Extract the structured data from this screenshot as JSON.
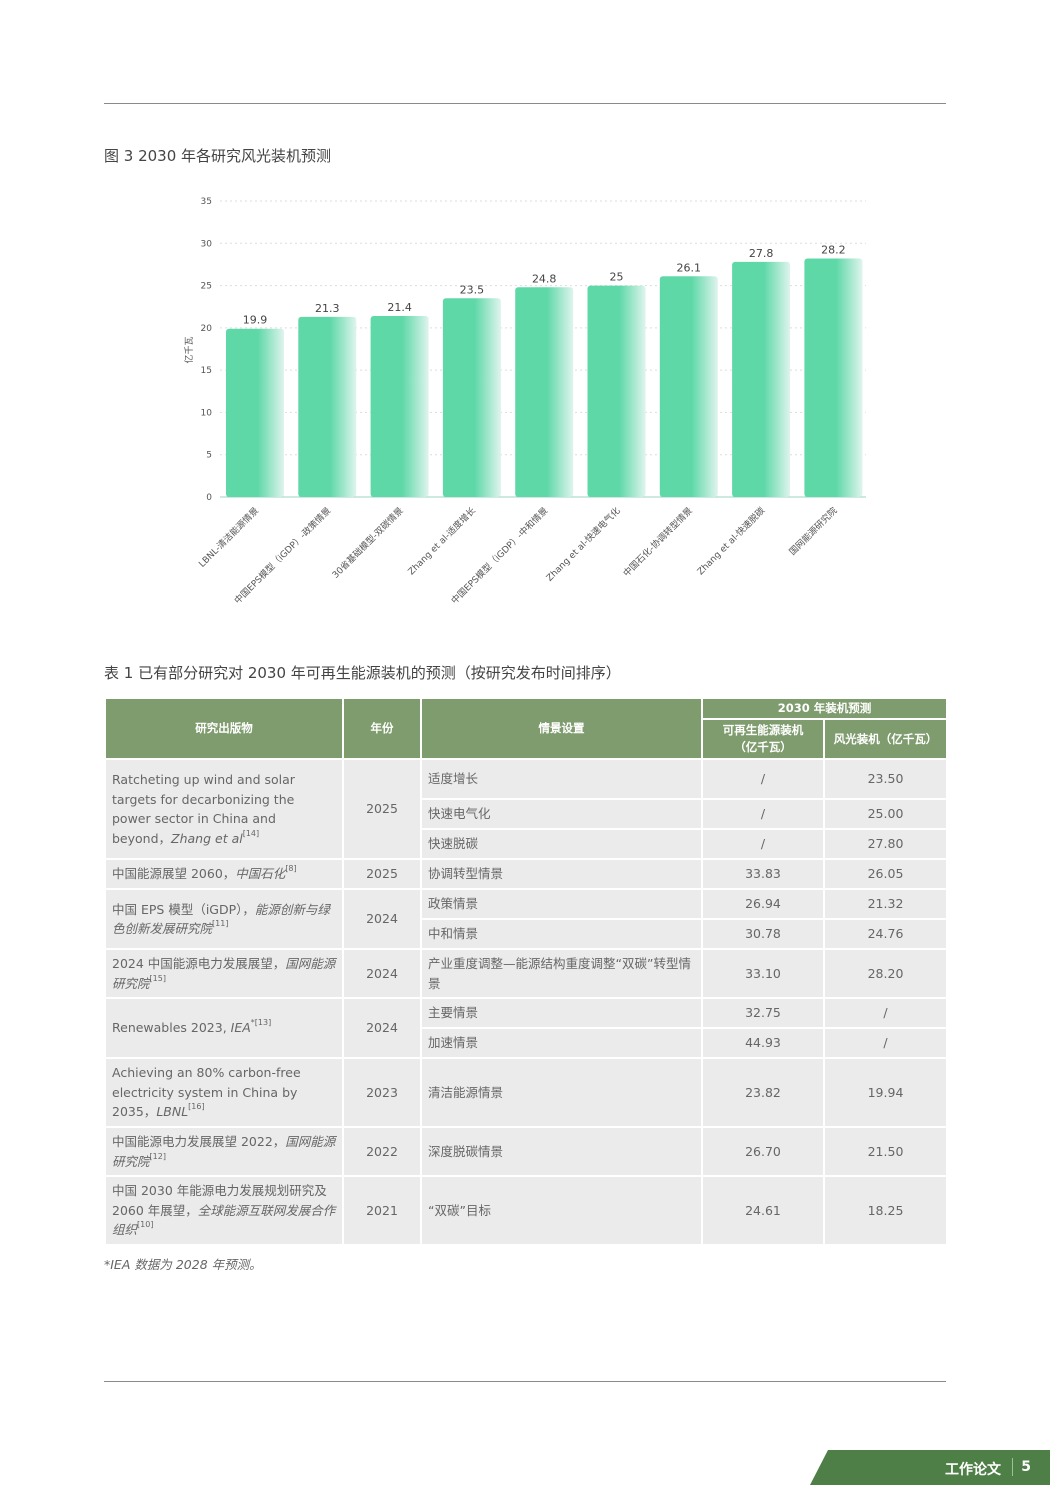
{
  "figure_caption": "图 3 2030 年各研究风光装机预测",
  "chart_data": {
    "type": "bar",
    "title": "",
    "xlabel": "",
    "ylabel": "亿千瓦",
    "ylim": [
      0,
      35
    ],
    "yticks": [
      0,
      5,
      10,
      15,
      20,
      25,
      30,
      35
    ],
    "grid": true,
    "categories": [
      "LBNL-清洁能源情景",
      "中国EPS模型（iGDP）-政策情景",
      "30省基础模型-双碳情景",
      "Zhang et al-适度增长",
      "中国EPS模型（iGDP）-中和情景",
      "Zhang et al-快速电气化",
      "中国石化-协调转型情景",
      "Zhang et al-快速脱碳",
      "国网能源研究院"
    ],
    "values": [
      19.9,
      21.3,
      21.4,
      23.5,
      24.8,
      25,
      26.1,
      27.8,
      28.2
    ],
    "bar_color": "#5fd8a8"
  },
  "table_caption": "表 1 已有部分研究对 2030 年可再生能源装机的预测（按研究发布时间排序）",
  "table": {
    "headers": {
      "publication": "研究出版物",
      "year": "年份",
      "scenario": "情景设置",
      "group": "2030 年装机预测",
      "renewable": "可再生能源装机（亿千瓦）",
      "windsolar": "风光装机（亿千瓦）"
    },
    "header_color": "#7f9c6e",
    "groups": [
      {
        "pub": "Ratcheting up wind and solar targets for decarbonizing the power sector in China and beyond，",
        "author": "Zhang et al",
        "ref": "[14]",
        "year": "2025",
        "rows": [
          {
            "scenario": "适度增长",
            "renewable": "/",
            "windsolar": "23.50"
          },
          {
            "scenario": "快速电气化",
            "renewable": "/",
            "windsolar": "25.00"
          },
          {
            "scenario": "快速脱碳",
            "renewable": "/",
            "windsolar": "27.80"
          }
        ]
      },
      {
        "pub": "中国能源展望 2060，",
        "author": "中国石化",
        "ref": "[8]",
        "year": "2025",
        "rows": [
          {
            "scenario": "协调转型情景",
            "renewable": "33.83",
            "windsolar": "26.05"
          }
        ]
      },
      {
        "pub": "中国 EPS 模型（iGDP），",
        "author": "能源创新与绿色创新发展研究院",
        "ref": "[11]",
        "year": "2024",
        "rows": [
          {
            "scenario": "政策情景",
            "renewable": "26.94",
            "windsolar": "21.32"
          },
          {
            "scenario": "中和情景",
            "renewable": "30.78",
            "windsolar": "24.76"
          }
        ]
      },
      {
        "pub": "2024 中国能源电力发展展望，",
        "author": "国网能源研究院",
        "ref": "[15]",
        "year": "2024",
        "rows": [
          {
            "scenario": "产业重度调整—能源结构重度调整“双碳”转型情景",
            "renewable": "33.10",
            "windsolar": "28.20"
          }
        ]
      },
      {
        "pub": "Renewables 2023, ",
        "author": "IEA",
        "ref": "*[13]",
        "year": "2024",
        "rows": [
          {
            "scenario": "主要情景",
            "renewable": "32.75",
            "windsolar": "/"
          },
          {
            "scenario": "加速情景",
            "renewable": "44.93",
            "windsolar": "/"
          }
        ]
      },
      {
        "pub": "Achieving an 80% carbon-free electricity system in China by 2035，",
        "author": "LBNL",
        "ref": "[16]",
        "year": "2023",
        "rows": [
          {
            "scenario": "清洁能源情景",
            "renewable": "23.82",
            "windsolar": "19.94"
          }
        ]
      },
      {
        "pub": "中国能源电力发展展望 2022，",
        "author": "国网能源研究院",
        "ref": "[12]",
        "year": "2022",
        "rows": [
          {
            "scenario": "深度脱碳情景",
            "renewable": "26.70",
            "windsolar": "21.50"
          }
        ]
      },
      {
        "pub": "中国 2030 年能源电力发展规划研究及 2060 年展望，",
        "author": "全球能源互联网发展合作组织",
        "ref": "[10]",
        "year": "2021",
        "rows": [
          {
            "scenario": "“双碳”目标",
            "renewable": "24.61",
            "windsolar": "18.25"
          }
        ]
      }
    ]
  },
  "table_note": "*IEA 数据为 2028 年预测。",
  "footer": {
    "section": "工作论文",
    "page": "5"
  }
}
